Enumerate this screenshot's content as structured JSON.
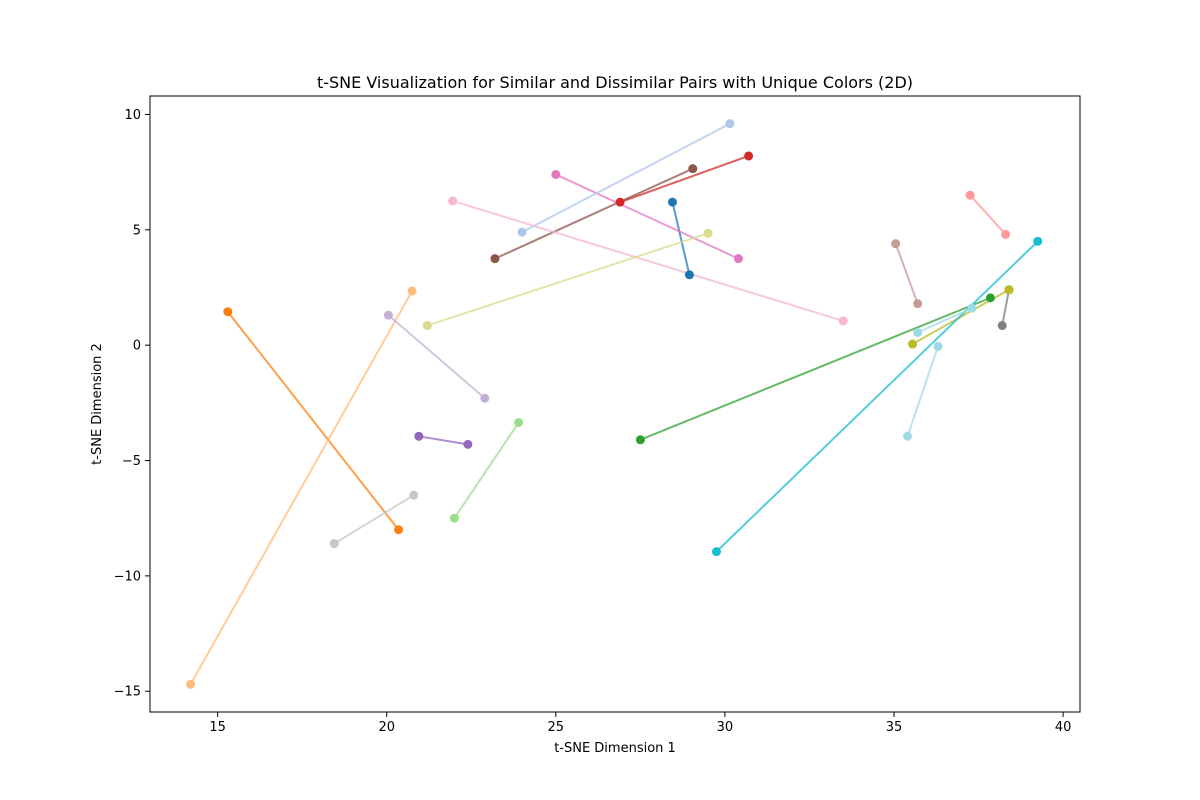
{
  "chart_data": {
    "type": "scatter",
    "title": "t-SNE Visualization for Similar and Dissimilar Pairs with Unique Colors (2D)",
    "xlabel": "t-SNE Dimension 1",
    "ylabel": "t-SNE Dimension 2",
    "xlim": [
      13,
      40.5
    ],
    "ylim": [
      -15.9,
      10.8
    ],
    "xticks": [
      15,
      20,
      25,
      30,
      35,
      40
    ],
    "yticks": [
      -15,
      -10,
      -5,
      0,
      5,
      10
    ],
    "grid": false,
    "series": [
      {
        "color": "#1f77b4",
        "points": [
          [
            28.45,
            6.2
          ],
          [
            28.95,
            3.05
          ]
        ]
      },
      {
        "color": "#ff7f0e",
        "points": [
          [
            15.3,
            1.45
          ],
          [
            20.35,
            -8.0
          ]
        ]
      },
      {
        "color": "#ffbb78",
        "points": [
          [
            20.75,
            2.35
          ],
          [
            14.2,
            -14.7
          ]
        ]
      },
      {
        "color": "#2ca02c",
        "points": [
          [
            27.5,
            -4.1
          ],
          [
            37.85,
            2.05
          ]
        ]
      },
      {
        "color": "#98df8a",
        "points": [
          [
            23.9,
            -3.35
          ],
          [
            22.0,
            -7.5
          ]
        ]
      },
      {
        "color": "#d62728",
        "points": [
          [
            30.7,
            8.2
          ],
          [
            26.9,
            6.2
          ]
        ]
      },
      {
        "color": "#ff9896",
        "points": [
          [
            37.25,
            6.5
          ],
          [
            38.3,
            4.8
          ]
        ]
      },
      {
        "color": "#9467bd",
        "points": [
          [
            20.95,
            -3.95
          ],
          [
            22.4,
            -4.3
          ]
        ]
      },
      {
        "color": "#c5b0d5",
        "points": [
          [
            20.05,
            1.3
          ],
          [
            22.9,
            -2.3
          ]
        ]
      },
      {
        "color": "#8c564b",
        "points": [
          [
            23.2,
            3.75
          ],
          [
            29.05,
            7.65
          ]
        ]
      },
      {
        "color": "#c49c94",
        "points": [
          [
            35.05,
            4.4
          ],
          [
            35.7,
            1.8
          ]
        ]
      },
      {
        "color": "#e377c2",
        "points": [
          [
            25.0,
            7.4
          ],
          [
            30.4,
            3.75
          ]
        ]
      },
      {
        "color": "#f7b6d2",
        "points": [
          [
            21.95,
            6.25
          ],
          [
            33.5,
            1.05
          ]
        ]
      },
      {
        "color": "#7f7f7f",
        "points": [
          [
            38.4,
            2.4
          ],
          [
            38.2,
            0.85
          ]
        ]
      },
      {
        "color": "#c7c7c7",
        "points": [
          [
            20.8,
            -6.5
          ],
          [
            18.45,
            -8.6
          ]
        ]
      },
      {
        "color": "#bcbd22",
        "points": [
          [
            38.4,
            2.4
          ],
          [
            35.55,
            0.05
          ]
        ]
      },
      {
        "color": "#dbdb8d",
        "points": [
          [
            29.5,
            4.85
          ],
          [
            21.2,
            0.85
          ]
        ]
      },
      {
        "color": "#17becf",
        "points": [
          [
            39.25,
            4.5
          ],
          [
            29.75,
            -8.95
          ]
        ]
      },
      {
        "color": "#9edae5",
        "points": [
          [
            36.3,
            -0.05
          ],
          [
            35.4,
            -3.95
          ]
        ]
      },
      {
        "color": "#aec7e8",
        "points": [
          [
            30.15,
            9.6
          ],
          [
            24.0,
            4.9
          ]
        ]
      },
      {
        "color": "#9edae5",
        "points": [
          [
            35.7,
            0.55
          ],
          [
            37.3,
            1.6
          ]
        ]
      }
    ]
  }
}
